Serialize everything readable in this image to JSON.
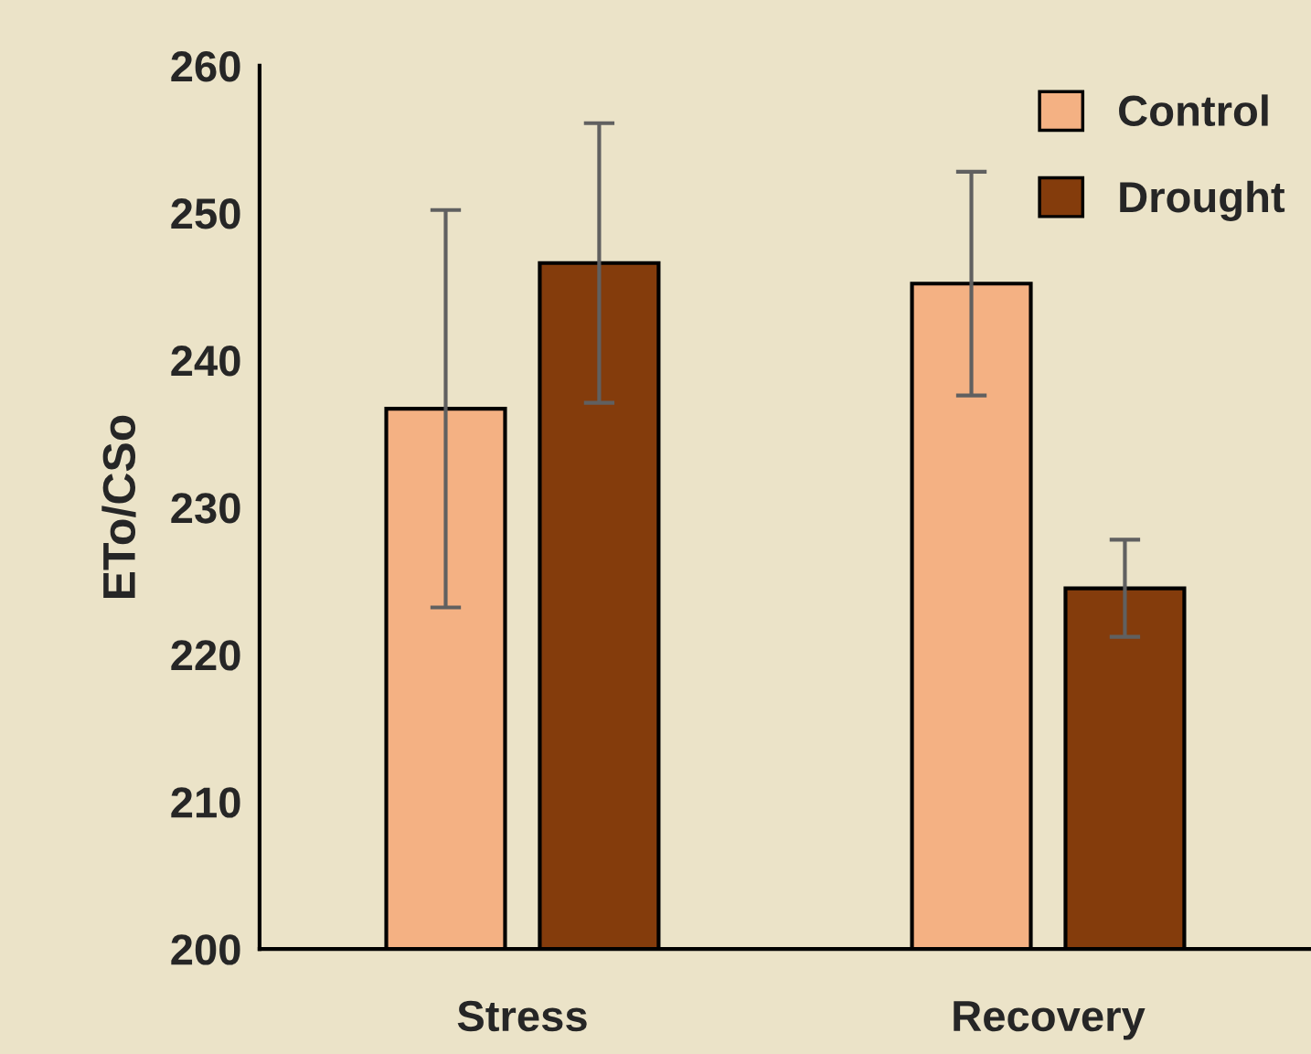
{
  "chart_data": {
    "type": "bar",
    "ylabel": "ETo/CSo",
    "categories": [
      "Stress",
      "Recovery"
    ],
    "series": [
      {
        "name": "Control",
        "color": "#f4b183",
        "values": [
          236.7,
          245.2
        ],
        "errors": [
          13.5,
          7.6
        ]
      },
      {
        "name": "Drought",
        "color": "#843c0c",
        "values": [
          246.6,
          224.5
        ],
        "errors": [
          9.5,
          3.3
        ]
      }
    ],
    "ylim": [
      200,
      260
    ],
    "yticks": [
      200,
      210,
      220,
      230,
      240,
      250,
      260
    ],
    "grid": false,
    "legend": "top right"
  }
}
